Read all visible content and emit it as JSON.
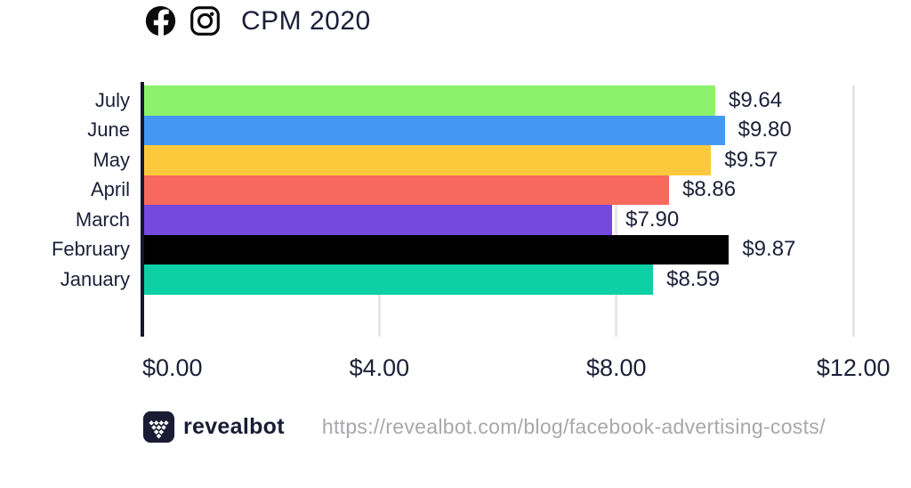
{
  "header": {
    "title": "CPM 2020",
    "icons": [
      "facebook-icon",
      "instagram-icon"
    ]
  },
  "chart_data": {
    "type": "bar",
    "orientation": "horizontal",
    "title": "CPM 2020",
    "categories": [
      "July",
      "June",
      "May",
      "April",
      "March",
      "February",
      "January"
    ],
    "values": [
      9.64,
      9.8,
      9.57,
      8.86,
      7.9,
      9.87,
      8.59
    ],
    "value_labels": [
      "$9.64",
      "$9.80",
      "$9.57",
      "$8.86",
      "$7.90",
      "$9.87",
      "$8.59"
    ],
    "bar_colors": [
      "#8CF26C",
      "#4498F3",
      "#FDC93C",
      "#F7695C",
      "#7449DB",
      "#000000",
      "#0DD0A4"
    ],
    "xlabel": "",
    "ylabel": "",
    "xlim": [
      0,
      12
    ],
    "x_ticks": [
      {
        "label": "$0.00",
        "value": 0
      },
      {
        "label": "$4.00",
        "value": 4
      },
      {
        "label": "$8.00",
        "value": 8
      },
      {
        "label": "$12.00",
        "value": 12
      }
    ],
    "grid": "vertical-light",
    "legend": "none"
  },
  "footer": {
    "brand": "revealbot",
    "url": "https://revealbot.com/blog/facebook-advertising-costs/"
  },
  "colors": {
    "text_dark": "#1c2038",
    "axis_line": "#14182e",
    "gridline": "#e6e6e6",
    "url_gray": "#a8a8ac",
    "logo_bg": "#191c33",
    "icon_black": "#0b0b0b"
  }
}
